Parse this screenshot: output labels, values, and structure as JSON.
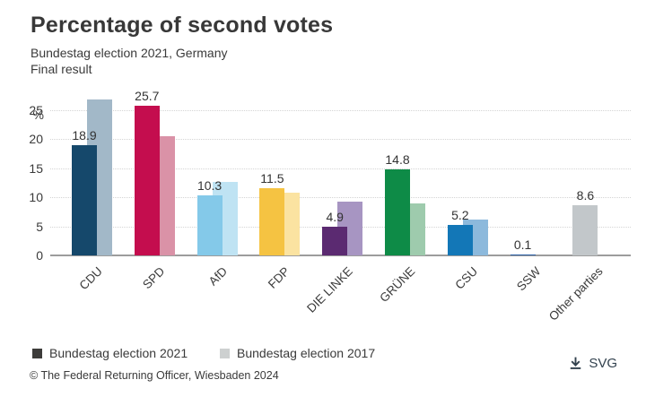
{
  "header": {
    "title": "Percentage of second votes",
    "subtitle_line1": "Bundestag election 2021, Germany",
    "subtitle_line2": "Final result"
  },
  "chart_data": {
    "type": "bar",
    "title": "Percentage of second votes",
    "unit": "%",
    "categories": [
      "CDU",
      "SPD",
      "AfD",
      "FDP",
      "DIE LINKE",
      "GRÜNE",
      "CSU",
      "SSW",
      "Other parties"
    ],
    "series": [
      {
        "name": "Bundestag election 2021",
        "values": [
          18.9,
          25.7,
          10.3,
          11.5,
          4.9,
          14.8,
          5.2,
          0.1,
          8.6
        ],
        "data_labels": [
          "18.9",
          "25.7",
          "10.3",
          "11.5",
          "4.9",
          "14.8",
          "5.2",
          "0.1",
          "8.6"
        ],
        "colors": [
          "#15486b",
          "#c40d4e",
          "#84c9e9",
          "#f5c342",
          "#5b2a71",
          "#0e8b47",
          "#1377b7",
          "#2a5fa5",
          "#c2c7ca"
        ]
      },
      {
        "name": "Bundestag election 2017",
        "values": [
          26.8,
          20.5,
          12.6,
          10.7,
          9.2,
          8.9,
          6.2,
          null,
          null
        ],
        "colors": [
          "#a2b8c8",
          "#da92a7",
          "#bfe3f3",
          "#fbe3a1",
          "#a795c2",
          "#9ecbad",
          "#8cb9dc",
          null,
          null
        ]
      }
    ],
    "yticks": [
      0,
      5,
      10,
      15,
      20,
      25
    ],
    "ylim": [
      0,
      28
    ],
    "grid": "horizontal-dotted",
    "legend_position": "bottom"
  },
  "legend": {
    "items": [
      {
        "label": "Bundestag election 2021",
        "color": "#3d3c3a"
      },
      {
        "label": "Bundestag election 2017",
        "color": "#cdd0d0"
      }
    ]
  },
  "footer": {
    "copyright": "© The Federal Returning Officer, Wiesbaden 2024",
    "download_label": "SVG",
    "download_icon": "download-icon"
  }
}
